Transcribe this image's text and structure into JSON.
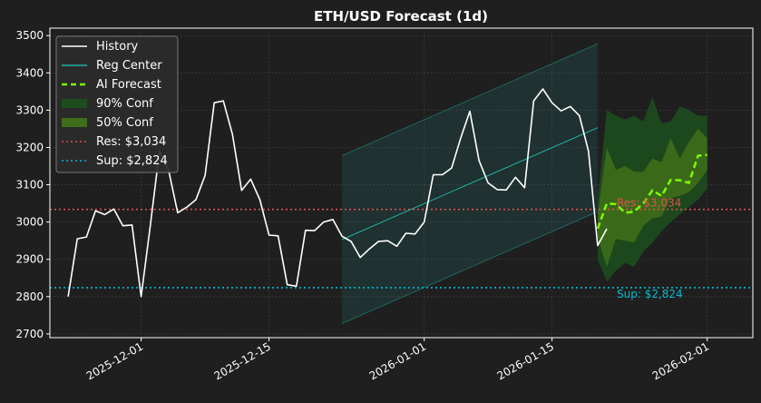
{
  "chart_data": {
    "type": "line",
    "title": "ETH/USD Forecast (1d)",
    "xlabel": "",
    "ylabel": "",
    "xlim": [
      "2025-11-21",
      "2026-02-06"
    ],
    "ylim": [
      2690,
      3520
    ],
    "y_ticks": [
      2700,
      2800,
      2900,
      3000,
      3100,
      3200,
      3300,
      3400,
      3500
    ],
    "x_ticks": [
      {
        "date": "2025-12-01",
        "label": "2025-12-01"
      },
      {
        "date": "2025-12-15",
        "label": "2025-12-15"
      },
      {
        "date": "2026-01-01",
        "label": "2026-01-01"
      },
      {
        "date": "2026-01-15",
        "label": "2026-01-15"
      },
      {
        "date": "2026-02-01",
        "label": "2026-02-01"
      }
    ],
    "grid": true,
    "legend_position": "top-left",
    "legend": [
      {
        "label": "History",
        "kind": "line",
        "color": "#ffffff"
      },
      {
        "label": "Reg Center",
        "kind": "line",
        "color": "#20b2aa"
      },
      {
        "label": "AI Forecast",
        "kind": "dashed",
        "color": "#7cfc00"
      },
      {
        "label": "90% Conf",
        "kind": "patch",
        "color": "#1d4d1d"
      },
      {
        "label": "50% Conf",
        "kind": "patch",
        "color": "#3e6e1a"
      },
      {
        "label": "Res: $3,034",
        "kind": "dotted",
        "color": "#e05050"
      },
      {
        "label": "Sup: $2,824",
        "kind": "dotted",
        "color": "#00bcd4"
      }
    ],
    "history": {
      "name": "History",
      "color": "#ffffff",
      "start_date": "2025-11-23",
      "values": [
        2800,
        2955,
        2960,
        3030,
        3020,
        3035,
        2990,
        2992,
        2800,
        2990,
        3190,
        3140,
        3025,
        3040,
        3060,
        3125,
        3320,
        3325,
        3235,
        3085,
        3115,
        3060,
        2965,
        2963,
        2832,
        2828,
        2978,
        2977,
        3000,
        3007,
        2962,
        2948,
        2905,
        2928,
        2948,
        2950,
        2935,
        2970,
        2968,
        3000,
        3127,
        3127,
        3145,
        3225,
        3297,
        3165,
        3105,
        3087,
        3086,
        3120,
        3092,
        3325,
        3357,
        3320,
        3298,
        3310,
        3285,
        3190,
        2937,
        2982
      ]
    },
    "regression": {
      "name": "Reg Center",
      "color": "#20b2aa",
      "start": {
        "date": "2025-12-23",
        "value": 2953
      },
      "end": {
        "date": "2026-01-20",
        "value": 3253
      },
      "band_offset": 225
    },
    "forecast": {
      "name": "AI Forecast",
      "color": "#7cfc00",
      "start_date": "2026-01-20",
      "values": [
        2982,
        3050,
        3048,
        3025,
        3028,
        3050,
        3085,
        3070,
        3113,
        3112,
        3105,
        3178,
        3180
      ],
      "conf90_upper": [
        3060,
        3300,
        3285,
        3275,
        3285,
        3270,
        3335,
        3265,
        3270,
        3310,
        3300,
        3285,
        3285
      ],
      "conf90_lower": [
        2900,
        2840,
        2870,
        2890,
        2880,
        2920,
        2945,
        2975,
        3000,
        3020,
        3040,
        3060,
        3090
      ],
      "conf50_upper": [
        3020,
        3200,
        3140,
        3150,
        3135,
        3135,
        3170,
        3160,
        3225,
        3170,
        3215,
        3250,
        3225
      ],
      "conf50_lower": [
        2960,
        2880,
        2955,
        2950,
        2945,
        2990,
        3010,
        3015,
        3065,
        3070,
        3080,
        3105,
        3140
      ]
    },
    "resistance": {
      "value": 3034,
      "label": "Res: $3,034",
      "color": "#e05050"
    },
    "support": {
      "value": 2824,
      "label": "Sup: $2,824",
      "color": "#00bcd4"
    }
  }
}
